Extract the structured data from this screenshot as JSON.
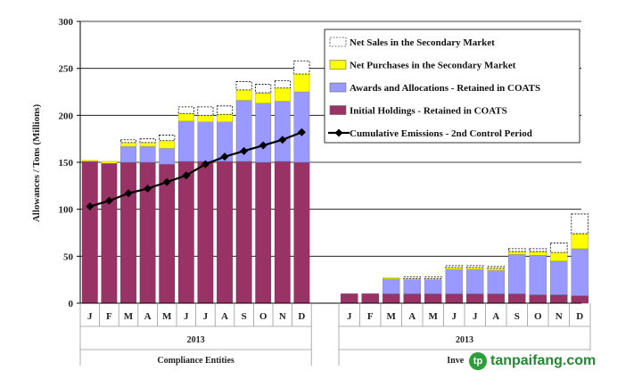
{
  "chart_data": {
    "type": "bar",
    "stacked": true,
    "ylabel": "Allowances / Tons (Millions)",
    "ylim": [
      0,
      300
    ],
    "yticks": [
      0,
      50,
      100,
      150,
      200,
      250,
      300
    ],
    "grid": true,
    "legend_position": "top-right",
    "colors": {
      "initial": "#993366",
      "awards": "#9999ff",
      "purchases": "#ffff00",
      "sales": "#ffffff",
      "emissions": "#000000"
    },
    "series_names": {
      "sales": "Net Sales in the Secondary Market",
      "purchases": "Net Purchases in the Secondary Market",
      "awards": "Awards and Allocations - Retained in COATS",
      "initial": "Initial Holdings - Retained in COATS",
      "emissions": "Cumulative Emissions - 2nd Control Period"
    },
    "groups": [
      {
        "name": "Compliance Entities",
        "year": "2013",
        "months": [
          "J",
          "F",
          "M",
          "A",
          "M",
          "J",
          "J",
          "A",
          "S",
          "O",
          "N",
          "D"
        ],
        "initial": [
          151,
          149,
          150,
          150,
          148,
          151,
          151,
          151,
          151,
          150,
          151,
          150
        ],
        "awards": [
          0,
          0,
          17,
          17,
          17,
          43,
          42,
          42,
          65,
          63,
          64,
          75
        ],
        "purchases": [
          1,
          2,
          4,
          4,
          8,
          8,
          7,
          8,
          11,
          11,
          14,
          19
        ],
        "sales": [
          0,
          0,
          3,
          4,
          6,
          7,
          9,
          9,
          9,
          9,
          8,
          14
        ],
        "emissions": [
          103,
          109,
          117,
          122,
          129,
          136,
          148,
          156,
          162,
          168,
          174,
          182
        ]
      },
      {
        "name": "Investors",
        "year": "2013",
        "months": [
          "J",
          "F",
          "M",
          "A",
          "M",
          "J",
          "J",
          "A",
          "S",
          "O",
          "N",
          "D"
        ],
        "initial": [
          10,
          10,
          10,
          10,
          10,
          10,
          10,
          10,
          10,
          9,
          9,
          8
        ],
        "awards": [
          0,
          0,
          16,
          15,
          15,
          26,
          26,
          25,
          42,
          42,
          36,
          50
        ],
        "purchases": [
          0,
          0,
          1,
          1,
          1,
          2,
          2,
          2,
          3,
          4,
          9,
          16
        ],
        "sales": [
          0,
          0,
          0,
          2,
          2,
          2,
          2,
          2,
          3,
          3,
          10,
          21
        ]
      }
    ]
  },
  "watermark": {
    "logo": "tp",
    "text": "tanpaifang.com"
  }
}
